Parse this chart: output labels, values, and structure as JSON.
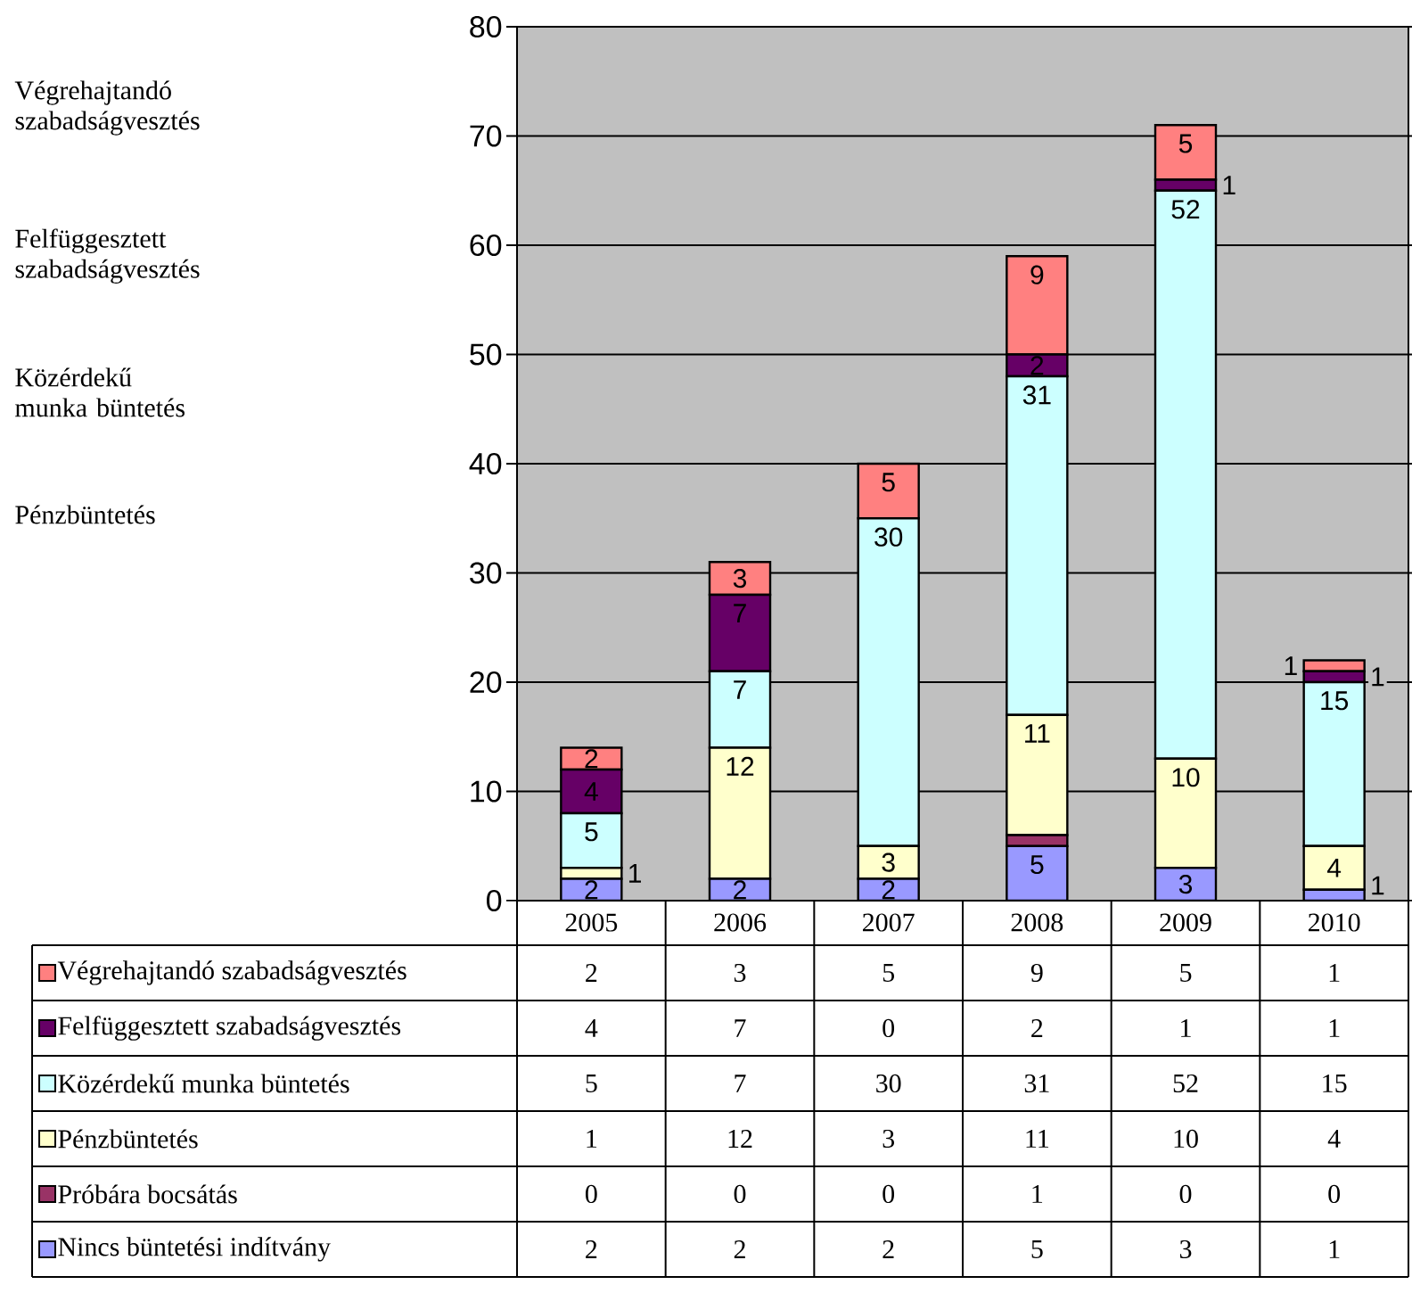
{
  "chart_data": {
    "type": "bar",
    "stacked": true,
    "categories": [
      "2005",
      "2006",
      "2007",
      "2008",
      "2009",
      "2010"
    ],
    "series": [
      {
        "name": "Nincs büntetési indítvány",
        "color": "#9999ff",
        "values": [
          2,
          2,
          2,
          5,
          3,
          1
        ]
      },
      {
        "name": "Próbára bocsátás",
        "color": "#993366",
        "values": [
          0,
          0,
          0,
          1,
          0,
          0
        ]
      },
      {
        "name": "Pénzbüntetés",
        "color": "#ffffcc",
        "values": [
          1,
          12,
          3,
          11,
          10,
          4
        ]
      },
      {
        "name": "Közérdekű munka büntetés",
        "color": "#ccffff",
        "values": [
          5,
          7,
          30,
          31,
          52,
          15
        ]
      },
      {
        "name": "Felfüggesztett szabadságvesztés",
        "color": "#660066",
        "values": [
          4,
          7,
          0,
          2,
          1,
          1
        ]
      },
      {
        "name": "Végrehajtandó szabadságvesztés",
        "color": "#ff8080",
        "values": [
          2,
          3,
          5,
          9,
          5,
          1
        ]
      }
    ],
    "ylim": [
      0,
      80
    ],
    "yticks": [
      0,
      10,
      20,
      30,
      40,
      50,
      60,
      70,
      80
    ],
    "grid": "y",
    "data_labels": true,
    "legend": "bottom",
    "annotations": [
      "Végrehajtandó szabadságvesztés",
      "Felfüggesztett szabadságvesztés",
      "Közérdekű munka büntetés",
      "Pénzbüntetés",
      {
        "text": "2",
        "x": "2005",
        "y": 2
      },
      {
        "text": "1",
        "x": "2005",
        "y": 3
      },
      {
        "text": "5",
        "x": "2005",
        "y": 8
      },
      {
        "text": "4",
        "x": "2005",
        "y": 12
      },
      {
        "text": "2",
        "x": "2005",
        "y": 14
      },
      {
        "text": "2",
        "x": "2006",
        "y": 2
      },
      {
        "text": "12",
        "x": "2006",
        "y": 14
      },
      {
        "text": "7",
        "x": "2006",
        "y": 21
      },
      {
        "text": "7",
        "x": "2006",
        "y": 28
      },
      {
        "text": "3",
        "x": "2006",
        "y": 31
      },
      {
        "text": "2",
        "x": "2007",
        "y": 2
      },
      {
        "text": "3",
        "x": "2007",
        "y": 5
      },
      {
        "text": "30",
        "x": "2007",
        "y": 35
      },
      {
        "text": "5",
        "x": "2007",
        "y": 40
      },
      {
        "text": "5",
        "x": "2008",
        "y": 5
      },
      {
        "text": "11",
        "x": "2008",
        "y": 17
      },
      {
        "text": "31",
        "x": "2008",
        "y": 48
      },
      {
        "text": "2",
        "x": "2008",
        "y": 50
      },
      {
        "text": "9",
        "x": "2008",
        "y": 59
      },
      {
        "text": "3",
        "x": "2009",
        "y": 3
      },
      {
        "text": "10",
        "x": "2009",
        "y": 13
      },
      {
        "text": "52",
        "x": "2009",
        "y": 65
      },
      {
        "text": "1",
        "x": "2009",
        "y": 66
      },
      {
        "text": "5",
        "x": "2009",
        "y": 71
      },
      {
        "text": "1",
        "x": "2010",
        "y": 1
      },
      {
        "text": "4",
        "x": "2010",
        "y": 5
      },
      {
        "text": "15",
        "x": "2010",
        "y": 20
      },
      {
        "text": "1",
        "x": "2010",
        "y": 21
      },
      {
        "text": "1",
        "x": "2010",
        "y": 22
      }
    ]
  }
}
